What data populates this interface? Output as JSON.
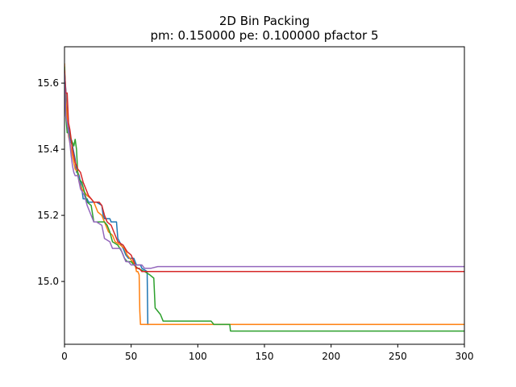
{
  "chart_data": {
    "type": "line",
    "title": "2D Bin Packing",
    "subtitle": "pm: 0.150000 pe: 0.100000 pfactor 5",
    "xlabel": "",
    "ylabel": "",
    "xlim": [
      0,
      300
    ],
    "ylim": [
      14.81,
      15.71
    ],
    "xticks": [
      0,
      50,
      100,
      150,
      200,
      250,
      300
    ],
    "yticks": [
      15.0,
      15.2,
      15.4,
      15.6
    ],
    "xtick_labels": [
      "0",
      "50",
      "100",
      "150",
      "200",
      "250",
      "300"
    ],
    "ytick_labels": [
      "15.0",
      "15.2",
      "15.4",
      "15.6"
    ],
    "grid": false,
    "legend": "none",
    "series": [
      {
        "color": "#1f77b4",
        "points": [
          [
            0,
            15.63
          ],
          [
            1,
            15.58
          ],
          [
            2,
            15.5
          ],
          [
            3,
            15.47
          ],
          [
            4,
            15.44
          ],
          [
            5,
            15.42
          ],
          [
            6,
            15.41
          ],
          [
            7,
            15.39
          ],
          [
            8,
            15.37
          ],
          [
            9,
            15.33
          ],
          [
            10,
            15.33
          ],
          [
            11,
            15.32
          ],
          [
            12,
            15.3
          ],
          [
            13,
            15.28
          ],
          [
            14,
            15.25
          ],
          [
            17,
            15.25
          ],
          [
            18,
            15.24
          ],
          [
            24,
            15.24
          ],
          [
            28,
            15.23
          ],
          [
            29,
            15.2
          ],
          [
            30,
            15.19
          ],
          [
            34,
            15.19
          ],
          [
            35,
            15.18
          ],
          [
            39,
            15.18
          ],
          [
            40,
            15.13
          ],
          [
            44,
            15.1
          ],
          [
            46,
            15.08
          ],
          [
            48,
            15.07
          ],
          [
            52,
            15.07
          ],
          [
            54,
            15.05
          ],
          [
            57,
            15.05
          ],
          [
            58,
            15.04
          ],
          [
            62,
            15.03
          ],
          [
            62.5,
            14.87
          ],
          [
            63,
            14.87
          ]
        ]
      },
      {
        "color": "#ff7f0e",
        "points": [
          [
            0,
            15.66
          ],
          [
            1,
            15.55
          ],
          [
            2,
            15.5
          ],
          [
            3,
            15.44
          ],
          [
            4,
            15.42
          ],
          [
            5,
            15.4
          ],
          [
            6,
            15.38
          ],
          [
            7,
            15.36
          ],
          [
            8,
            15.34
          ],
          [
            10,
            15.33
          ],
          [
            11,
            15.3
          ],
          [
            13,
            15.28
          ],
          [
            15,
            15.27
          ],
          [
            17,
            15.26
          ],
          [
            20,
            15.25
          ],
          [
            22,
            15.24
          ],
          [
            25,
            15.21
          ],
          [
            28,
            15.2
          ],
          [
            30,
            15.18
          ],
          [
            33,
            15.15
          ],
          [
            36,
            15.14
          ],
          [
            38,
            15.12
          ],
          [
            42,
            15.11
          ],
          [
            45,
            15.1
          ],
          [
            47,
            15.08
          ],
          [
            49,
            15.07
          ],
          [
            51,
            15.06
          ],
          [
            53,
            15.05
          ],
          [
            54,
            15.03
          ],
          [
            55,
            15.03
          ],
          [
            56,
            15.02
          ],
          [
            56.5,
            14.91
          ],
          [
            57,
            14.87
          ],
          [
            300,
            14.87
          ]
        ]
      },
      {
        "color": "#2ca02c",
        "points": [
          [
            0,
            15.65
          ],
          [
            1,
            15.5
          ],
          [
            2,
            15.45
          ],
          [
            3,
            15.45
          ],
          [
            4,
            15.44
          ],
          [
            5,
            15.43
          ],
          [
            6,
            15.42
          ],
          [
            7,
            15.41
          ],
          [
            8,
            15.43
          ],
          [
            9,
            15.4
          ],
          [
            10,
            15.32
          ],
          [
            11,
            15.31
          ],
          [
            13,
            15.3
          ],
          [
            15,
            15.27
          ],
          [
            17,
            15.24
          ],
          [
            20,
            15.23
          ],
          [
            22,
            15.18
          ],
          [
            26,
            15.18
          ],
          [
            30,
            15.18
          ],
          [
            32,
            15.17
          ],
          [
            34,
            15.15
          ],
          [
            36,
            15.12
          ],
          [
            40,
            15.11
          ],
          [
            43,
            15.09
          ],
          [
            45,
            15.07
          ],
          [
            47,
            15.06
          ],
          [
            50,
            15.06
          ],
          [
            52,
            15.05
          ],
          [
            55,
            15.04
          ],
          [
            60,
            15.03
          ],
          [
            64,
            15.02
          ],
          [
            67,
            15.01
          ],
          [
            68,
            14.92
          ],
          [
            70,
            14.91
          ],
          [
            72,
            14.9
          ],
          [
            74,
            14.88
          ],
          [
            76,
            14.88
          ],
          [
            80,
            14.88
          ],
          [
            90,
            14.88
          ],
          [
            100,
            14.88
          ],
          [
            110,
            14.88
          ],
          [
            112,
            14.87
          ],
          [
            120,
            14.87
          ],
          [
            124,
            14.87
          ],
          [
            124.5,
            14.85
          ],
          [
            300,
            14.85
          ]
        ]
      },
      {
        "color": "#d62728",
        "points": [
          [
            0,
            15.64
          ],
          [
            1,
            15.57
          ],
          [
            2,
            15.57
          ],
          [
            3,
            15.48
          ],
          [
            4,
            15.46
          ],
          [
            5,
            15.43
          ],
          [
            6,
            15.4
          ],
          [
            7,
            15.38
          ],
          [
            8,
            15.36
          ],
          [
            9,
            15.35
          ],
          [
            10,
            15.34
          ],
          [
            12,
            15.33
          ],
          [
            14,
            15.3
          ],
          [
            16,
            15.28
          ],
          [
            18,
            15.26
          ],
          [
            20,
            15.25
          ],
          [
            22,
            15.24
          ],
          [
            26,
            15.24
          ],
          [
            28,
            15.23
          ],
          [
            30,
            15.2
          ],
          [
            32,
            15.18
          ],
          [
            35,
            15.17
          ],
          [
            37,
            15.15
          ],
          [
            40,
            15.12
          ],
          [
            44,
            15.11
          ],
          [
            47,
            15.09
          ],
          [
            50,
            15.08
          ],
          [
            52,
            15.06
          ],
          [
            54,
            15.04
          ],
          [
            56,
            15.04
          ],
          [
            58,
            15.03
          ],
          [
            300,
            15.03
          ]
        ]
      },
      {
        "color": "#9467bd",
        "points": [
          [
            0,
            15.63
          ],
          [
            1,
            15.5
          ],
          [
            2,
            15.48
          ],
          [
            3,
            15.45
          ],
          [
            4,
            15.42
          ],
          [
            5,
            15.38
          ],
          [
            6,
            15.35
          ],
          [
            7,
            15.33
          ],
          [
            8,
            15.32
          ],
          [
            10,
            15.32
          ],
          [
            12,
            15.28
          ],
          [
            15,
            15.26
          ],
          [
            17,
            15.23
          ],
          [
            20,
            15.2
          ],
          [
            22,
            15.18
          ],
          [
            24,
            15.18
          ],
          [
            28,
            15.17
          ],
          [
            29,
            15.15
          ],
          [
            30,
            15.13
          ],
          [
            34,
            15.12
          ],
          [
            36,
            15.1
          ],
          [
            42,
            15.1
          ],
          [
            44,
            15.08
          ],
          [
            46,
            15.06
          ],
          [
            48,
            15.06
          ],
          [
            50,
            15.05
          ],
          [
            55,
            15.05
          ],
          [
            58,
            15.05
          ],
          [
            60,
            15.04
          ],
          [
            65,
            15.04
          ],
          [
            70,
            15.045
          ],
          [
            300,
            15.045
          ]
        ]
      }
    ]
  }
}
